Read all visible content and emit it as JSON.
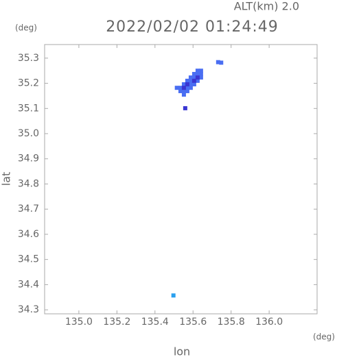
{
  "chart_data": {
    "type": "scatter",
    "title": "2022/02/02 01:24:49",
    "subtitle": "ALT(km) 2.0",
    "y_unit": "(deg)",
    "x_unit": "(deg)",
    "x_label": "lon",
    "y_label": "lat",
    "xlim": [
      134.82,
      136.252
    ],
    "ylim": [
      34.284,
      35.354
    ],
    "xticks": [
      {
        "value": 135.0,
        "label": "135.0"
      },
      135.2,
      135.4,
      135.6,
      135.8,
      {
        "value": 136.0,
        "label": "136.0"
      }
    ],
    "yticks": [
      35.3,
      35.2,
      35.1,
      {
        "value": 35.0,
        "label": "35.0"
      },
      34.9,
      34.8,
      34.7,
      34.6,
      34.5,
      34.4,
      34.3
    ],
    "series": [
      {
        "color": "#4a6ef2",
        "x": [
          135.624,
          135.642,
          135.606,
          135.624,
          135.642,
          135.588,
          135.606,
          135.642,
          135.57,
          135.588,
          135.624,
          135.552,
          135.588,
          135.606,
          135.515,
          135.534,
          135.57,
          135.588,
          135.534,
          135.552,
          135.57,
          135.552,
          135.732,
          135.748
        ],
        "values": [
          35.25,
          35.25,
          35.237,
          35.237,
          35.237,
          35.223,
          35.223,
          35.223,
          35.21,
          35.21,
          35.21,
          35.196,
          35.196,
          35.196,
          35.182,
          35.182,
          35.182,
          35.182,
          35.169,
          35.169,
          35.169,
          35.155,
          35.284,
          35.282
        ]
      },
      {
        "color": "#3a36d2",
        "x": [
          135.624,
          135.606,
          135.57,
          135.552,
          135.559
        ],
        "values": [
          35.223,
          35.21,
          35.196,
          35.182,
          35.101
        ]
      },
      {
        "color": "#2aa0ee",
        "x": [
          135.497
        ],
        "values": [
          34.357
        ]
      }
    ]
  }
}
